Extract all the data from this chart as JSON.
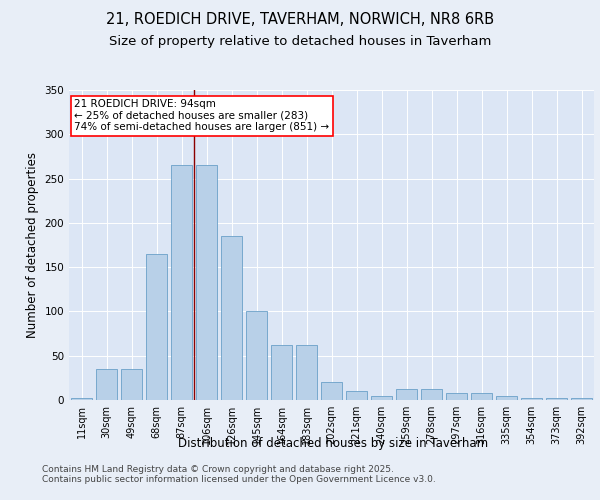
{
  "title_line1": "21, ROEDICH DRIVE, TAVERHAM, NORWICH, NR8 6RB",
  "title_line2": "Size of property relative to detached houses in Taverham",
  "xlabel": "Distribution of detached houses by size in Taverham",
  "ylabel": "Number of detached properties",
  "categories": [
    "11sqm",
    "30sqm",
    "49sqm",
    "68sqm",
    "87sqm",
    "106sqm",
    "126sqm",
    "145sqm",
    "164sqm",
    "183sqm",
    "202sqm",
    "221sqm",
    "240sqm",
    "259sqm",
    "278sqm",
    "297sqm",
    "316sqm",
    "335sqm",
    "354sqm",
    "373sqm",
    "392sqm"
  ],
  "values": [
    2,
    35,
    35,
    165,
    265,
    265,
    185,
    100,
    62,
    62,
    20,
    10,
    5,
    12,
    12,
    8,
    8,
    5,
    2,
    2,
    2
  ],
  "bar_color": "#b8d0e8",
  "bar_edge_color": "#6aa0c8",
  "vline_color": "#8b0000",
  "vline_x_index": 4,
  "annotation_text": "21 ROEDICH DRIVE: 94sqm\n← 25% of detached houses are smaller (283)\n74% of semi-detached houses are larger (851) →",
  "ylim": [
    0,
    350
  ],
  "yticks": [
    0,
    50,
    100,
    150,
    200,
    250,
    300,
    350
  ],
  "bg_color": "#e8eef7",
  "plot_bg_color": "#dce6f5",
  "footer": "Contains HM Land Registry data © Crown copyright and database right 2025.\nContains public sector information licensed under the Open Government Licence v3.0.",
  "title_fontsize": 10.5,
  "subtitle_fontsize": 9.5,
  "axis_label_fontsize": 8.5,
  "tick_fontsize": 7,
  "annotation_fontsize": 7.5,
  "footer_fontsize": 6.5
}
